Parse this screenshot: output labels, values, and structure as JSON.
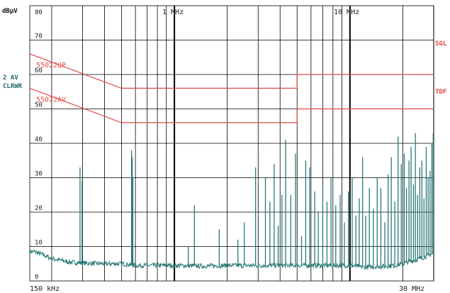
{
  "chart_data": {
    "type": "line",
    "title": "",
    "xlabel": "",
    "ylabel": "dBµV",
    "x_scale": "log",
    "xlim": [
      0.15,
      30
    ],
    "ylim": [
      0,
      80
    ],
    "y_ticks": [
      0,
      10,
      20,
      30,
      40,
      50,
      60,
      70,
      80
    ],
    "grid": true,
    "x_tick_labels": {
      "start": "150 kHz",
      "mid1": "1 MHz",
      "mid2": "10 MHz",
      "end": "30 MHz"
    },
    "left_labels": {
      "trace": "2 AV",
      "mode": "CLRWR"
    },
    "right_labels": {
      "top": "SGL",
      "mid": "TDF"
    },
    "colors": {
      "trace": "#2a7a78",
      "limit": "#e04848",
      "grid": "#000000",
      "frame": "#555555"
    },
    "limits": [
      {
        "name": "55022QP",
        "x": [
          0.15,
          0.5,
          0.5,
          5,
          5,
          30
        ],
        "y": [
          66,
          56,
          56,
          56,
          60,
          60
        ]
      },
      {
        "name": "55022AV",
        "x": [
          0.15,
          0.5,
          0.5,
          5,
          5,
          30
        ],
        "y": [
          56,
          46,
          46,
          46,
          50,
          50
        ]
      }
    ],
    "series": [
      {
        "baseline_x": [
          0.15,
          0.16,
          0.18,
          0.2,
          0.25,
          0.3,
          0.4,
          0.5,
          0.6,
          0.8,
          1.0,
          1.5,
          2.0,
          3.0,
          5.0,
          7.0,
          10.0,
          12.0,
          15.0,
          18.0,
          20.0,
          25.0,
          30.0
        ],
        "baseline_y": [
          8.5,
          8.5,
          7.5,
          6.5,
          5.5,
          5.2,
          5.0,
          5.0,
          4.5,
          4.5,
          4.5,
          4.3,
          4.5,
          4.5,
          4.5,
          4.5,
          4.5,
          4.0,
          4.2,
          4.5,
          5.0,
          6.5,
          8.0
        ],
        "peaks_x": [
          0.29,
          0.298,
          0.57,
          0.575,
          0.58,
          1.2,
          1.3,
          1.8,
          2.3,
          2.5,
          2.9,
          3.3,
          3.5,
          3.7,
          3.9,
          4.1,
          4.3,
          4.6,
          4.9,
          5.3,
          5.6,
          5.9,
          6.3,
          6.6,
          7.0,
          7.4,
          7.8,
          8.3,
          8.8,
          9.3,
          9.8,
          10.3,
          10.8,
          11.3,
          11.8,
          12.3,
          12.9,
          13.6,
          14.3,
          15.0,
          15.8,
          16.5,
          17.2,
          18.0,
          18.8,
          19.6,
          20.4,
          21.0,
          21.7,
          22.3,
          23.0,
          23.6,
          24.3,
          25.0,
          25.7,
          26.4,
          27.2,
          27.9,
          28.6,
          29.3,
          29.8
        ],
        "peaks_y": [
          33,
          29,
          38,
          36,
          30,
          10,
          22,
          15,
          12,
          17,
          33,
          30,
          23,
          34,
          16,
          25,
          41,
          25,
          37,
          13,
          35,
          33,
          26,
          20,
          28,
          23,
          30,
          22,
          25,
          17,
          26,
          30,
          19,
          24,
          36,
          19,
          27,
          21,
          30,
          27,
          17,
          31,
          36,
          23,
          42,
          34,
          37,
          27,
          35,
          39,
          28,
          43,
          25,
          33,
          35,
          24,
          39,
          30,
          32,
          40,
          43
        ]
      }
    ]
  }
}
